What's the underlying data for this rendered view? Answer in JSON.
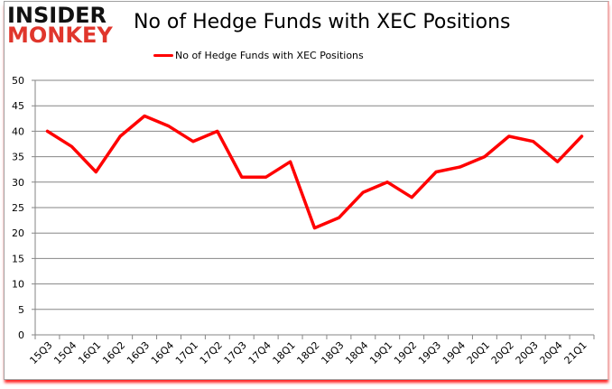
{
  "logo": {
    "line1": "INSIDER",
    "line2": "MONKEY"
  },
  "header": {
    "title": "No of Hedge Funds with XEC Positions"
  },
  "legend": {
    "label": "No of Hedge Funds with XEC Positions",
    "color": "#ff0000"
  },
  "chart_data": {
    "type": "line",
    "title": "No of Hedge Funds with XEC Positions",
    "xlabel": "",
    "ylabel": "",
    "ylim": [
      0,
      50
    ],
    "yticks": [
      0,
      5,
      10,
      15,
      20,
      25,
      30,
      35,
      40,
      45,
      50
    ],
    "grid": true,
    "legend_position": "top",
    "categories": [
      "15Q3",
      "15Q4",
      "16Q1",
      "16Q2",
      "16Q3",
      "16Q4",
      "17Q1",
      "17Q2",
      "17Q3",
      "17Q4",
      "18Q1",
      "18Q2",
      "18Q3",
      "18Q4",
      "19Q1",
      "19Q2",
      "19Q3",
      "19Q4",
      "20Q1",
      "20Q2",
      "20Q3",
      "20Q4",
      "21Q1"
    ],
    "series": [
      {
        "name": "No of Hedge Funds with XEC Positions",
        "color": "#ff0000",
        "values": [
          40,
          37,
          32,
          39,
          43,
          41,
          38,
          40,
          31,
          31,
          34,
          21,
          23,
          28,
          30,
          27,
          32,
          33,
          35,
          39,
          38,
          34,
          39
        ]
      }
    ]
  }
}
